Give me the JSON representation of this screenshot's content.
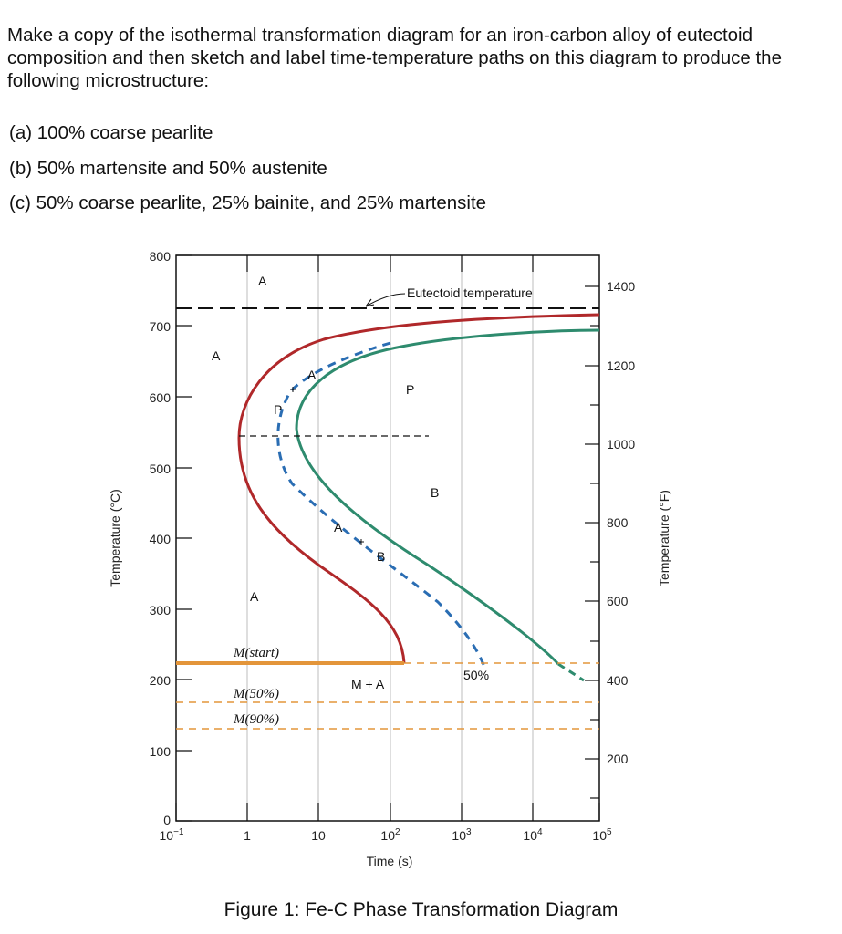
{
  "question": {
    "intro": "Make a copy of the isothermal transformation diagram for an iron-carbon alloy of eutectoid composition and then sketch and label time-temperature paths on this diagram to produce the following microstructure:",
    "items": [
      {
        "label": "(a)",
        "text": "100% coarse pearlite"
      },
      {
        "label": "(b)",
        "text": "50% martensite and 50% austenite"
      },
      {
        "label": "(c)",
        "text": "50% coarse pearlite, 25% bainite, and 25% martensite"
      }
    ]
  },
  "diagram": {
    "y_left_label": "Temperature (°C)",
    "y_right_label": "Temperature (°F)",
    "x_label": "Time (s)",
    "y_left_ticks": [
      "0",
      "100",
      "200",
      "300",
      "400",
      "500",
      "600",
      "700",
      "800"
    ],
    "y_right_ticks": [
      "200",
      "400",
      "600",
      "800",
      "1000",
      "1200",
      "1400"
    ],
    "x_ticks": [
      "10",
      "1",
      "10",
      "10",
      "10",
      "10",
      "10"
    ],
    "x_tick_exponents": [
      "−1",
      "",
      "",
      "2",
      "3",
      "4",
      "5"
    ],
    "eutectoid_label": "Eutectoid temperature",
    "region_labels": {
      "a_top": "A",
      "a_left": "A",
      "a_low": "A",
      "p_region": "P",
      "b_region": "B",
      "m_plus_a": "M + A",
      "fifty_percent": "50%",
      "path_a1": "A",
      "path_p": "P",
      "path_a2": "A",
      "path_b": "B"
    },
    "m_start": "M(start)",
    "m_50": "M(50%)",
    "m_90": "M(90%)",
    "colors": {
      "start_curve": "#b0282a",
      "finish_curve": "#2e8b6e",
      "fifty_curve": "#2a6db3",
      "martensite_line": "#e3953a",
      "grid": "#c8c8c8"
    }
  },
  "caption": "Figure 1: Fe-C Phase Transformation Diagram"
}
